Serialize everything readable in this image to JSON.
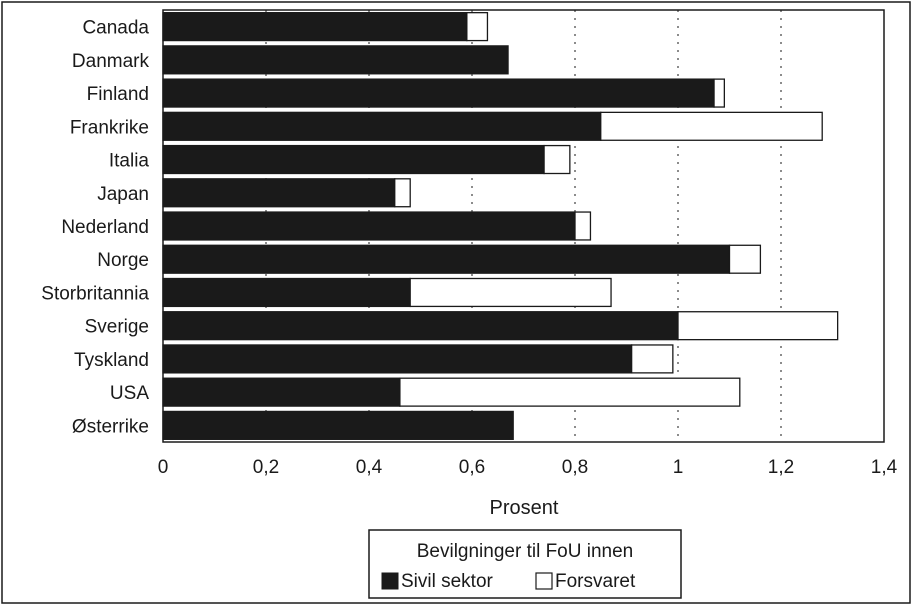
{
  "chart_data": {
    "type": "bar",
    "orientation": "horizontal",
    "stacked": true,
    "categories": [
      "Canada",
      "Danmark",
      "Finland",
      "Frankrike",
      "Italia",
      "Japan",
      "Nederland",
      "Norge",
      "Storbritannia",
      "Sverige",
      "Tyskland",
      "USA",
      "Østerrike"
    ],
    "series": [
      {
        "name": "Sivil sektor",
        "color": "#1a1a1a",
        "values": [
          0.59,
          0.67,
          1.07,
          0.85,
          0.74,
          0.45,
          0.8,
          1.1,
          0.48,
          1.0,
          0.91,
          0.46,
          0.68
        ]
      },
      {
        "name": "Forsvaret",
        "color": "#ffffff",
        "values": [
          0.04,
          0.0,
          0.02,
          0.43,
          0.05,
          0.03,
          0.03,
          0.06,
          0.39,
          0.31,
          0.08,
          0.66,
          0.0
        ]
      }
    ],
    "xlabel": "Prosent",
    "xlim": [
      0,
      1.4
    ],
    "xticks": [
      0,
      0.2,
      0.4,
      0.6,
      0.8,
      1,
      1.2,
      1.4
    ],
    "xtick_labels": [
      "0",
      "0,2",
      "0,4",
      "0,6",
      "0,8",
      "1",
      "1,2",
      "1,4"
    ],
    "grid": "vertical dotted",
    "legend": {
      "title": "Bevilgninger til FoU innen",
      "placement": "bottom-center",
      "entries": [
        "Sivil sektor",
        "Forsvaret"
      ]
    }
  }
}
